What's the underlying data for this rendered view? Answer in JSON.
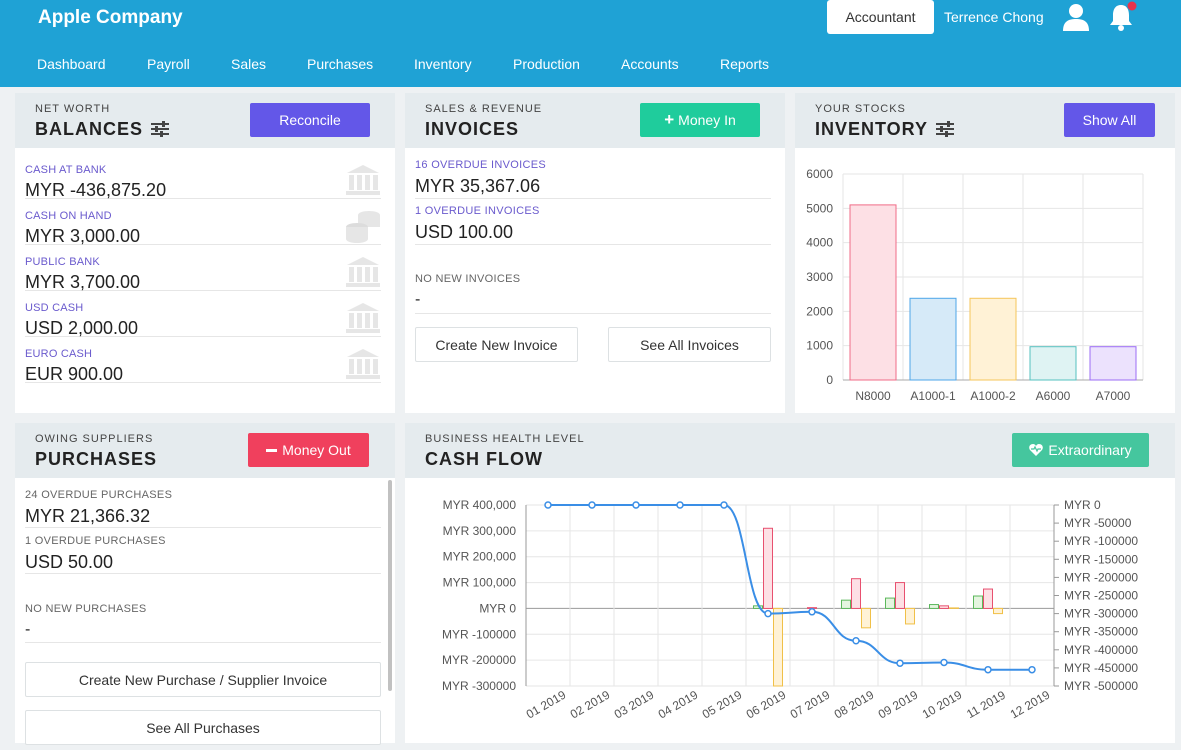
{
  "header": {
    "company": "Apple Company",
    "role_button": "Accountant",
    "user_name": "Terrence Chong",
    "user_icon": "user-icon",
    "bell_icon": "bell-icon",
    "notification_dot_color": "#e8334a",
    "bar_color": "#1fa2d5"
  },
  "nav": [
    "Dashboard",
    "Payroll",
    "Sales",
    "Purchases",
    "Inventory",
    "Production",
    "Accounts",
    "Reports"
  ],
  "balances": {
    "subtitle": "NET WORTH",
    "title": "BALANCES",
    "button": "Reconcile",
    "button_color": "#6357e8",
    "rows": [
      {
        "label": "CASH AT BANK",
        "value": "MYR -436,875.20",
        "icon": "bank-icon"
      },
      {
        "label": "CASH ON HAND",
        "value": "MYR 3,000.00",
        "icon": "coins-icon"
      },
      {
        "label": "PUBLIC BANK",
        "value": "MYR 3,700.00",
        "icon": "bank-icon"
      },
      {
        "label": "USD CASH",
        "value": "USD 2,000.00",
        "icon": "bank-icon"
      },
      {
        "label": "EURO CASH",
        "value": "EUR 900.00",
        "icon": "bank-icon"
      }
    ]
  },
  "invoices": {
    "subtitle": "SALES & REVENUE",
    "title": "INVOICES",
    "button": "Money In",
    "button_icon": "plus-icon",
    "button_color": "#1fcc9c",
    "overdue1_label": "16 OVERDUE INVOICES",
    "overdue1_value": "MYR 35,367.06",
    "overdue2_label": "1 OVERDUE INVOICES",
    "overdue2_value": "USD 100.00",
    "new_label": "NO NEW INVOICES",
    "new_value": "-",
    "create_button": "Create New Invoice",
    "see_all_button": "See All Invoices"
  },
  "inventory": {
    "subtitle": "YOUR STOCKS",
    "title": "INVENTORY",
    "button": "Show All",
    "button_color": "#6357e8",
    "chart_data": {
      "type": "bar",
      "categories": [
        "N8000",
        "A1000-1",
        "A1000-2",
        "A6000",
        "A7000"
      ],
      "values": [
        5100,
        2380,
        2380,
        970,
        970
      ],
      "ylim": [
        0,
        6000
      ],
      "yticks": [
        0,
        1000,
        2000,
        3000,
        4000,
        5000,
        6000
      ],
      "grid": true,
      "colors": [
        {
          "fill": "#fde0e5",
          "stroke": "#f06b87"
        },
        {
          "fill": "#d6eaf8",
          "stroke": "#4ea6e8"
        },
        {
          "fill": "#fff2d6",
          "stroke": "#f5c65a"
        },
        {
          "fill": "#dff3f3",
          "stroke": "#56c0bf"
        },
        {
          "fill": "#ece2fd",
          "stroke": "#9b6cf5"
        }
      ]
    }
  },
  "purchases": {
    "subtitle": "OWING SUPPLIERS",
    "title": "PURCHASES",
    "button": "Money Out",
    "button_icon": "minus-icon",
    "button_color": "#f0405d",
    "overdue1_label": "24 OVERDUE PURCHASES",
    "overdue1_value": "MYR 21,366.32",
    "overdue2_label": "1 OVERDUE PURCHASES",
    "overdue2_value": "USD 50.00",
    "new_label": "NO NEW PURCHASES",
    "new_value": "-",
    "create_button": "Create New Purchase / Supplier Invoice",
    "see_all_button": "See All Purchases"
  },
  "cashflow": {
    "subtitle": "BUSINESS HEALTH LEVEL",
    "title": "CASH FLOW",
    "button": "Extraordinary",
    "button_icon": "heart-icon",
    "button_color": "#45c69e",
    "chart_data": {
      "type": "bar",
      "categories": [
        "01 2019",
        "02 2019",
        "03 2019",
        "04 2019",
        "05 2019",
        "06 2019",
        "07 2019",
        "08 2019",
        "09 2019",
        "10 2019",
        "11 2019",
        "12 2019"
      ],
      "left_axis": {
        "ticks": [
          "MYR 400,000",
          "MYR 300,000",
          "MYR 200,000",
          "MYR 100,000",
          "MYR 0",
          "MYR -100000",
          "MYR -200000",
          "MYR -300000"
        ],
        "ylim": [
          -300000,
          400000
        ]
      },
      "right_axis": {
        "ticks": [
          "MYR 0",
          "MYR -50000",
          "MYR -100000",
          "MYR -150000",
          "MYR -200000",
          "MYR -250000",
          "MYR -300000",
          "MYR -350000",
          "MYR -400000",
          "MYR -450000",
          "MYR -500000"
        ],
        "ylim": [
          -500000,
          0
        ]
      },
      "series": [
        {
          "type": "bar",
          "axis": "left",
          "fill": "#e5f5e0",
          "stroke": "#5cb85c",
          "values": [
            0,
            0,
            0,
            0,
            0,
            10000,
            0,
            32000,
            40000,
            15000,
            48000,
            0
          ]
        },
        {
          "type": "bar",
          "axis": "left",
          "fill": "#fde0e5",
          "stroke": "#e8506f",
          "values": [
            0,
            0,
            0,
            0,
            0,
            310000,
            3000,
            115000,
            100000,
            10000,
            75000,
            0
          ]
        },
        {
          "type": "bar",
          "axis": "left",
          "fill": "#fff2d6",
          "stroke": "#f0c048",
          "values": [
            0,
            0,
            0,
            0,
            0,
            -300000,
            0,
            -75000,
            -60000,
            2000,
            -20000,
            0
          ]
        },
        {
          "type": "line",
          "axis": "right",
          "color": "#3a8ee6",
          "values": [
            0,
            0,
            0,
            0,
            0,
            -300000,
            -295000,
            -375000,
            -437000,
            -435000,
            -455000,
            -455000
          ]
        }
      ],
      "grid": true
    }
  }
}
